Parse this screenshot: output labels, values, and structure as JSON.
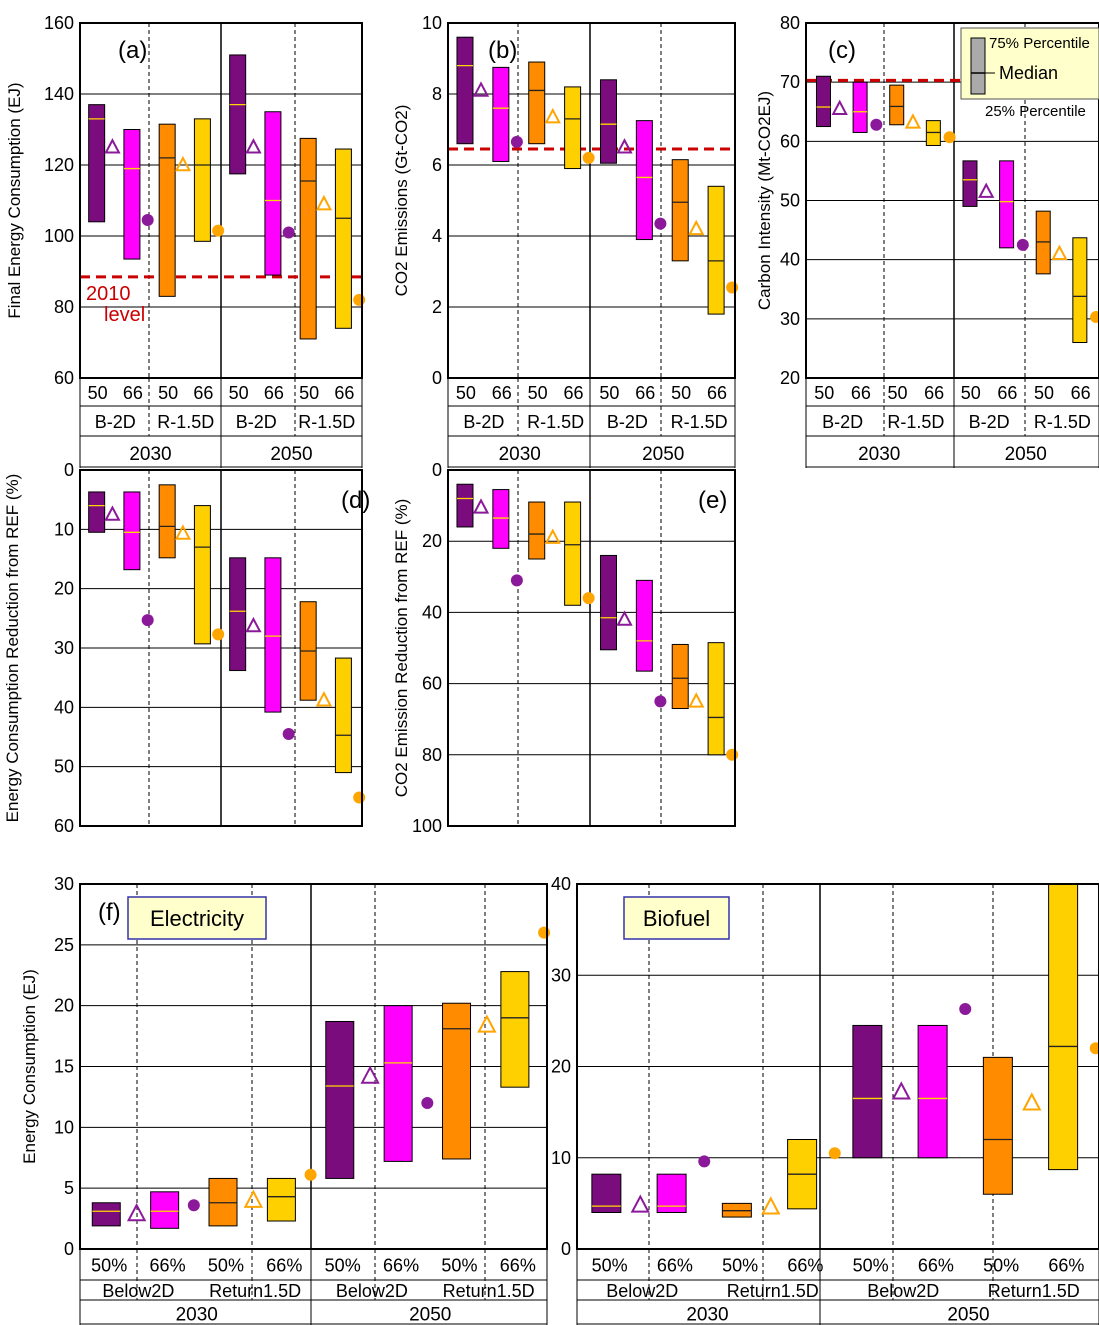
{
  "chart_data": [
    {
      "id": "a",
      "type": "boxplot",
      "panel_label": "(a)",
      "ylabel": "Final Energy Consumption (EJ)",
      "ylim": [
        60,
        160
      ],
      "yticks": [
        60,
        80,
        100,
        120,
        140,
        160
      ],
      "ref_line": {
        "value": 88.5,
        "label": [
          "2010",
          "level"
        ]
      },
      "x_rows": [
        [
          "50",
          "66",
          "50",
          "66",
          "50",
          "66",
          "50",
          "66"
        ],
        [
          "B-2D",
          "R-1.5D",
          "B-2D",
          "R-1.5D"
        ],
        [
          "2030",
          "2050"
        ]
      ],
      "boxes": [
        {
          "q1": 104,
          "median": 133,
          "q3": 137,
          "color": "#7B0C7E",
          "tri": 125,
          "dot": 104.5
        },
        {
          "q1": 93.5,
          "median": 119,
          "q3": 130,
          "color": "#FF00FF",
          "tri": null,
          "dot": null
        },
        {
          "q1": 83,
          "median": 122,
          "q3": 131.5,
          "color": "#FF8C00",
          "tri": 120,
          "dot": 101.5
        },
        {
          "q1": 98.5,
          "median": 120,
          "q3": 133,
          "color": "#FFD000",
          "tri": null,
          "dot": null
        },
        {
          "q1": 117.5,
          "median": 137,
          "q3": 151,
          "color": "#7B0C7E",
          "tri": 125,
          "dot": 101
        },
        {
          "q1": 89,
          "median": 110,
          "q3": 135,
          "color": "#FF00FF",
          "tri": null,
          "dot": null
        },
        {
          "q1": 71,
          "median": 115.5,
          "q3": 127.5,
          "color": "#FF8C00",
          "tri": 109,
          "dot": 82
        },
        {
          "q1": 74,
          "median": 105,
          "q3": 124.5,
          "color": "#FFD000",
          "tri": null,
          "dot": null
        }
      ]
    },
    {
      "id": "b",
      "type": "boxplot",
      "panel_label": "(b)",
      "ylabel": "CO2 Emissions (Gt-CO2)",
      "ylim": [
        0,
        10
      ],
      "yticks": [
        0,
        2,
        4,
        6,
        8,
        10
      ],
      "ref_line": {
        "value": 6.45,
        "label": []
      },
      "x_rows": [
        [
          "50",
          "66",
          "50",
          "66",
          "50",
          "66",
          "50",
          "66"
        ],
        [
          "B-2D",
          "R-1.5D",
          "B-2D",
          "R-1.5D"
        ],
        [
          "2030",
          "2050"
        ]
      ],
      "boxes": [
        {
          "q1": 6.6,
          "median": 8.8,
          "q3": 9.6,
          "color": "#7B0C7E",
          "tri": 8.1,
          "dot": 6.65
        },
        {
          "q1": 6.1,
          "median": 7.6,
          "q3": 8.75,
          "color": "#FF00FF",
          "tri": null,
          "dot": null
        },
        {
          "q1": 6.6,
          "median": 8.1,
          "q3": 8.9,
          "color": "#FF8C00",
          "tri": 7.35,
          "dot": 6.2
        },
        {
          "q1": 5.9,
          "median": 7.3,
          "q3": 8.2,
          "color": "#FFD000",
          "tri": null,
          "dot": null
        },
        {
          "q1": 6.05,
          "median": 7.15,
          "q3": 8.4,
          "color": "#7B0C7E",
          "tri": 6.5,
          "dot": 4.35
        },
        {
          "q1": 3.9,
          "median": 5.65,
          "q3": 7.25,
          "color": "#FF00FF",
          "tri": null,
          "dot": null
        },
        {
          "q1": 3.3,
          "median": 4.95,
          "q3": 6.15,
          "color": "#FF8C00",
          "tri": 4.2,
          "dot": 2.55
        },
        {
          "q1": 1.8,
          "median": 3.3,
          "q3": 5.4,
          "color": "#FFD000",
          "tri": null,
          "dot": null
        }
      ]
    },
    {
      "id": "c",
      "type": "boxplot",
      "panel_label": "(c)",
      "ylabel": "Carbon Intensity (Mt-CO2EJ)",
      "ylim": [
        20,
        80
      ],
      "yticks": [
        20,
        30,
        40,
        50,
        60,
        70,
        80
      ],
      "ref_line": {
        "value": 70.3,
        "label": []
      },
      "legend": {
        "top": "75% Percentile",
        "mid": "Median",
        "bottom": "25% Percentile"
      },
      "x_rows": [
        [
          "50",
          "66",
          "50",
          "66",
          "50",
          "66",
          "50",
          "66"
        ],
        [
          "B-2D",
          "R-1.5D",
          "B-2D",
          "R-1.5D"
        ],
        [
          "2030",
          "2050"
        ]
      ],
      "boxes": [
        {
          "q1": 62.5,
          "median": 65.8,
          "q3": 71,
          "color": "#7B0C7E",
          "tri": 65.5,
          "dot": 62.8
        },
        {
          "q1": 61.5,
          "median": 65,
          "q3": 70,
          "color": "#FF00FF",
          "tri": null,
          "dot": null
        },
        {
          "q1": 62.8,
          "median": 65.9,
          "q3": 69.5,
          "color": "#FF8C00",
          "tri": 63.2,
          "dot": 60.7
        },
        {
          "q1": 59.3,
          "median": 61.5,
          "q3": 63.5,
          "color": "#FFD000",
          "tri": null,
          "dot": null
        },
        {
          "q1": 49,
          "median": 53.5,
          "q3": 56.7,
          "color": "#7B0C7E",
          "tri": 51.5,
          "dot": 42.5
        },
        {
          "q1": 42,
          "median": 49.8,
          "q3": 56.7,
          "color": "#FF00FF",
          "tri": null,
          "dot": null
        },
        {
          "q1": 37.6,
          "median": 43,
          "q3": 48.2,
          "color": "#FF8C00",
          "tri": 41,
          "dot": 30.3
        },
        {
          "q1": 26,
          "median": 33.8,
          "q3": 43.7,
          "color": "#FFD000",
          "tri": null,
          "dot": null
        }
      ]
    },
    {
      "id": "d",
      "type": "boxplot",
      "panel_label": "(d)",
      "ylabel": "Energy Consumption Reduction from REF (%)",
      "ylim": [
        0,
        60
      ],
      "inverted": true,
      "yticks": [
        0,
        10,
        20,
        30,
        40,
        50,
        60
      ],
      "boxes": [
        {
          "q1": 3.7,
          "median": 6,
          "q3": 10.5,
          "color": "#7B0C7E",
          "tri": 7.5,
          "dot": 25.3
        },
        {
          "q1": 3.7,
          "median": 10.5,
          "q3": 16.8,
          "color": "#FF00FF",
          "tri": null,
          "dot": null
        },
        {
          "q1": 2.5,
          "median": 9.5,
          "q3": 14.8,
          "color": "#FF8C00",
          "tri": 10.7,
          "dot": 27.7
        },
        {
          "q1": 6,
          "median": 13,
          "q3": 29.3,
          "color": "#FFD000",
          "tri": null,
          "dot": null
        },
        {
          "q1": 14.8,
          "median": 23.8,
          "q3": 33.8,
          "color": "#7B0C7E",
          "tri": 26.3,
          "dot": 44.5
        },
        {
          "q1": 14.8,
          "median": 28,
          "q3": 40.8,
          "color": "#FF00FF",
          "tri": null,
          "dot": null
        },
        {
          "q1": 22.2,
          "median": 30.5,
          "q3": 38.8,
          "color": "#FF8C00",
          "tri": 38.8,
          "dot": 55.2
        },
        {
          "q1": 31.7,
          "median": 44.7,
          "q3": 51,
          "color": "#FFD000",
          "tri": null,
          "dot": null
        }
      ]
    },
    {
      "id": "e",
      "type": "boxplot",
      "panel_label": "(e)",
      "ylabel": "CO2 Emission Reduction from REF (%)",
      "ylim": [
        0,
        100
      ],
      "inverted": true,
      "yticks": [
        0,
        20,
        40,
        60,
        80,
        100
      ],
      "boxes": [
        {
          "q1": 4,
          "median": 8,
          "q3": 16,
          "color": "#7B0C7E",
          "tri": 10.5,
          "dot": 31
        },
        {
          "q1": 5.5,
          "median": 13.5,
          "q3": 22,
          "color": "#FF00FF",
          "tri": null,
          "dot": null
        },
        {
          "q1": 9,
          "median": 18,
          "q3": 25,
          "color": "#FF8C00",
          "tri": 19,
          "dot": 36
        },
        {
          "q1": 9,
          "median": 21,
          "q3": 38,
          "color": "#FFD000",
          "tri": null,
          "dot": null
        },
        {
          "q1": 24,
          "median": 41.5,
          "q3": 50.5,
          "color": "#7B0C7E",
          "tri": 42,
          "dot": 65
        },
        {
          "q1": 31,
          "median": 48,
          "q3": 56.5,
          "color": "#FF00FF",
          "tri": null,
          "dot": null
        },
        {
          "q1": 49,
          "median": 58.5,
          "q3": 67,
          "color": "#FF8C00",
          "tri": 65,
          "dot": 80
        },
        {
          "q1": 48.5,
          "median": 69.5,
          "q3": 80,
          "color": "#FFD000",
          "tri": null,
          "dot": null
        }
      ]
    },
    {
      "id": "f-electricity",
      "type": "boxplot",
      "panel_label": "(f)",
      "title": "Electricity",
      "ylabel": "Energy Consumption (EJ)",
      "ylim": [
        0,
        30
      ],
      "yticks": [
        0,
        5,
        10,
        15,
        20,
        25,
        30
      ],
      "x_rows": [
        [
          "50%",
          "66%",
          "50%",
          "66%",
          "50%",
          "66%",
          "50%",
          "66%"
        ],
        [
          "Below2D",
          "Return1.5D",
          "Below2D",
          "Return1.5D"
        ],
        [
          "2030",
          "2050"
        ]
      ],
      "boxes": [
        {
          "q1": 1.9,
          "median": 3.1,
          "q3": 3.8,
          "color": "#7B0C7E",
          "tri": 2.9,
          "dot": null
        },
        {
          "q1": 1.7,
          "median": 3.1,
          "q3": 4.7,
          "color": "#FF00FF",
          "tri": null,
          "dot": 3.6
        },
        {
          "q1": 1.9,
          "median": 3.8,
          "q3": 5.8,
          "color": "#FF8C00",
          "tri": 4,
          "dot": null
        },
        {
          "q1": 2.3,
          "median": 4.3,
          "q3": 5.8,
          "color": "#FFD000",
          "tri": null,
          "dot": 6.1
        },
        {
          "q1": 5.8,
          "median": 13.4,
          "q3": 18.7,
          "color": "#7B0C7E",
          "tri": 14.2,
          "dot": null
        },
        {
          "q1": 7.2,
          "median": 15.3,
          "q3": 20,
          "color": "#FF00FF",
          "tri": null,
          "dot": 12
        },
        {
          "q1": 7.4,
          "median": 18.1,
          "q3": 20.2,
          "color": "#FF8C00",
          "tri": 18.4,
          "dot": null
        },
        {
          "q1": 13.3,
          "median": 19,
          "q3": 22.8,
          "color": "#FFD000",
          "tri": null,
          "dot": 26
        }
      ]
    },
    {
      "id": "f-biofuel",
      "type": "boxplot",
      "title": "Biofuel",
      "ylim": [
        0,
        40
      ],
      "yticks": [
        0,
        10,
        20,
        30,
        40
      ],
      "x_rows": [
        [
          "50%",
          "66%",
          "50%",
          "66%",
          "50%",
          "66%",
          "50%",
          "66%"
        ],
        [
          "Below2D",
          "Return1.5D",
          "Below2D",
          "Return1.5D"
        ],
        [
          "2030",
          "2050"
        ]
      ],
      "boxes": [
        {
          "q1": 4,
          "median": 4.7,
          "q3": 8.2,
          "color": "#7B0C7E",
          "tri": 4.8,
          "dot": null
        },
        {
          "q1": 4,
          "median": 4.7,
          "q3": 8.2,
          "color": "#FF00FF",
          "tri": null,
          "dot": 9.6
        },
        {
          "q1": 3.5,
          "median": 4.2,
          "q3": 5,
          "color": "#FF8C00",
          "tri": 4.6,
          "dot": null
        },
        {
          "q1": 4.4,
          "median": 8.2,
          "q3": 12,
          "color": "#FFD000",
          "tri": null,
          "dot": 10.5
        },
        {
          "q1": 10,
          "median": 16.5,
          "q3": 24.5,
          "color": "#7B0C7E",
          "tri": 17.2,
          "dot": null
        },
        {
          "q1": 10,
          "median": 16.5,
          "q3": 24.5,
          "color": "#FF00FF",
          "tri": null,
          "dot": 26.3
        },
        {
          "q1": 6,
          "median": 12,
          "q3": 21,
          "color": "#FF8C00",
          "tri": 16,
          "dot": null
        },
        {
          "q1": 8.7,
          "median": 22.2,
          "q3": 40,
          "color": "#FFD000",
          "tri": null,
          "dot": 22
        }
      ]
    }
  ]
}
